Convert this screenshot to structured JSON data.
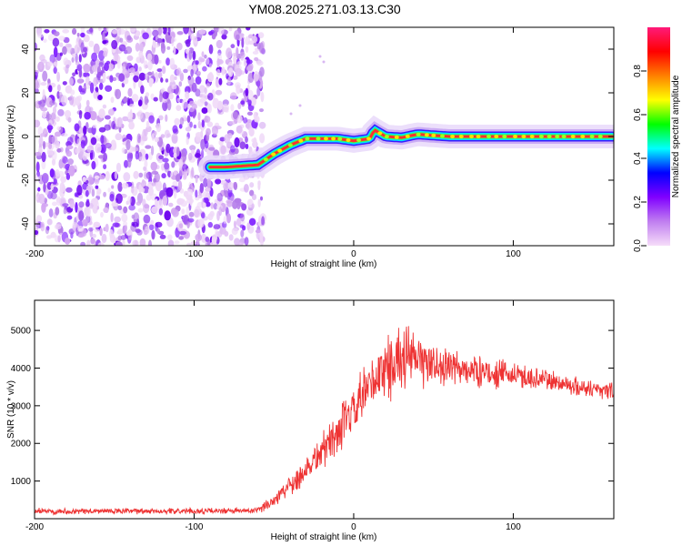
{
  "figure": {
    "title": "YM08.2025.271.03.13.C30"
  },
  "chart_data": [
    {
      "type": "heatmap",
      "name": "spectrogram",
      "xlabel": "Height of straight line (km)",
      "ylabel": "Frequency (Hz)",
      "xlim": [
        -200,
        163
      ],
      "ylim": [
        -50,
        50
      ],
      "xticks": [
        -200,
        -100,
        0,
        100
      ],
      "yticks": [
        -40,
        -20,
        0,
        20,
        40
      ],
      "noise_region_x": [
        -200,
        -60
      ],
      "ridge": {
        "x": [
          -80,
          -60,
          -50,
          -40,
          -30,
          -20,
          -10,
          0,
          10,
          13,
          20,
          30,
          40,
          60,
          80,
          100,
          120,
          140,
          163
        ],
        "hz": [
          -14,
          -13,
          -8,
          -4,
          -1,
          -1,
          -1,
          -2,
          -1,
          3,
          0,
          -0.5,
          1,
          0,
          0,
          0,
          0,
          0,
          0
        ]
      },
      "colorbar": {
        "label": "Normalized spectral amplitude",
        "ticks": [
          "0.0",
          "0.2",
          "0.4",
          "0.6",
          "0.8"
        ],
        "range": [
          0,
          1
        ],
        "colors": [
          "#f6ddf9",
          "#c07ef0",
          "#8000ff",
          "#0000ff",
          "#00ffff",
          "#00ff00",
          "#ffff00",
          "#ff8000",
          "#ff0000",
          "#ff1a7a"
        ]
      }
    },
    {
      "type": "line",
      "name": "snr",
      "xlabel": "Height of straight line (km)",
      "ylabel": "SNR (10 * v/v)",
      "xlim": [
        -200,
        163
      ],
      "ylim": [
        0,
        5800
      ],
      "xticks": [
        -200,
        -100,
        0,
        100
      ],
      "yticks": [
        1000,
        2000,
        3000,
        4000,
        5000
      ],
      "color": "#ee3333",
      "series": [
        {
          "name": "SNR",
          "x": [
            -200,
            -150,
            -100,
            -60,
            -50,
            -40,
            -30,
            -20,
            -10,
            0,
            10,
            20,
            30,
            40,
            60,
            80,
            100,
            120,
            140,
            163
          ],
          "mean": [
            200,
            200,
            200,
            210,
            500,
            900,
            1300,
            1800,
            2300,
            2800,
            3500,
            4000,
            4300,
            4200,
            4000,
            3900,
            3800,
            3700,
            3500,
            3400
          ],
          "spread": [
            80,
            80,
            80,
            80,
            200,
            300,
            400,
            500,
            600,
            700,
            800,
            900,
            900,
            700,
            500,
            400,
            350,
            300,
            250,
            250
          ]
        }
      ]
    }
  ]
}
